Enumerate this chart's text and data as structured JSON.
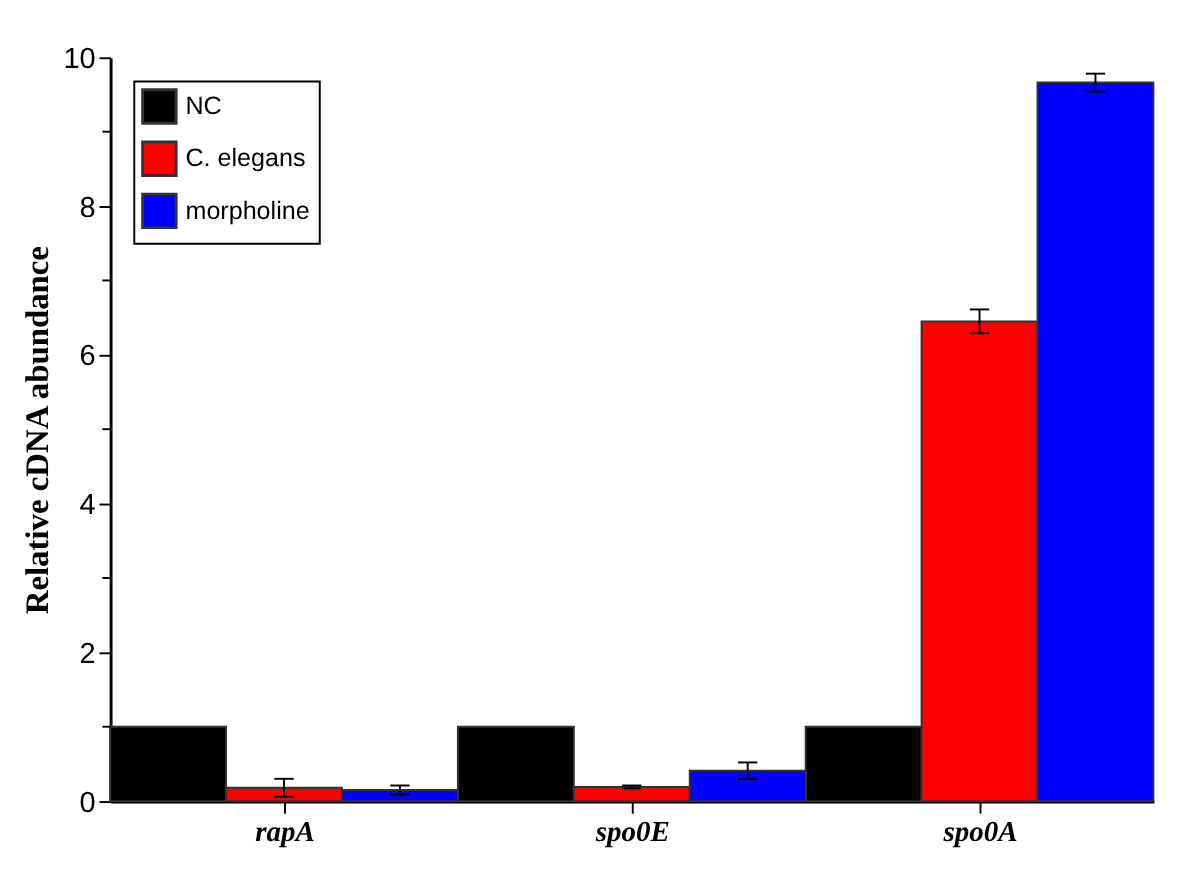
{
  "chart_data": {
    "type": "bar",
    "ylabel": "Relative cDNA abundance",
    "categories": [
      "rapA",
      "spo0E",
      "spo0A"
    ],
    "series": [
      {
        "name": "NC",
        "color": "#000000",
        "values": [
          1,
          1,
          1
        ]
      },
      {
        "name": "C. elegans",
        "color": "#ff0000",
        "values": [
          0.18,
          0.19,
          6.45
        ],
        "errors": [
          0.12,
          0.02,
          0.16
        ]
      },
      {
        "name": "morpholine",
        "color": "#0000ff",
        "values": [
          0.15,
          0.41,
          9.66
        ],
        "errors": [
          0.06,
          0.11,
          0.12
        ]
      }
    ],
    "ylim": [
      0,
      10
    ],
    "yticks": [
      0,
      {
        "value": 1,
        "label": null
      },
      2,
      {
        "value": 3,
        "label": null
      },
      4,
      {
        "value": 5,
        "label": null
      },
      6,
      {
        "value": 7,
        "label": null
      },
      8,
      {
        "value": 9,
        "label": null
      },
      10
    ],
    "grid": false,
    "legend": "top left"
  }
}
